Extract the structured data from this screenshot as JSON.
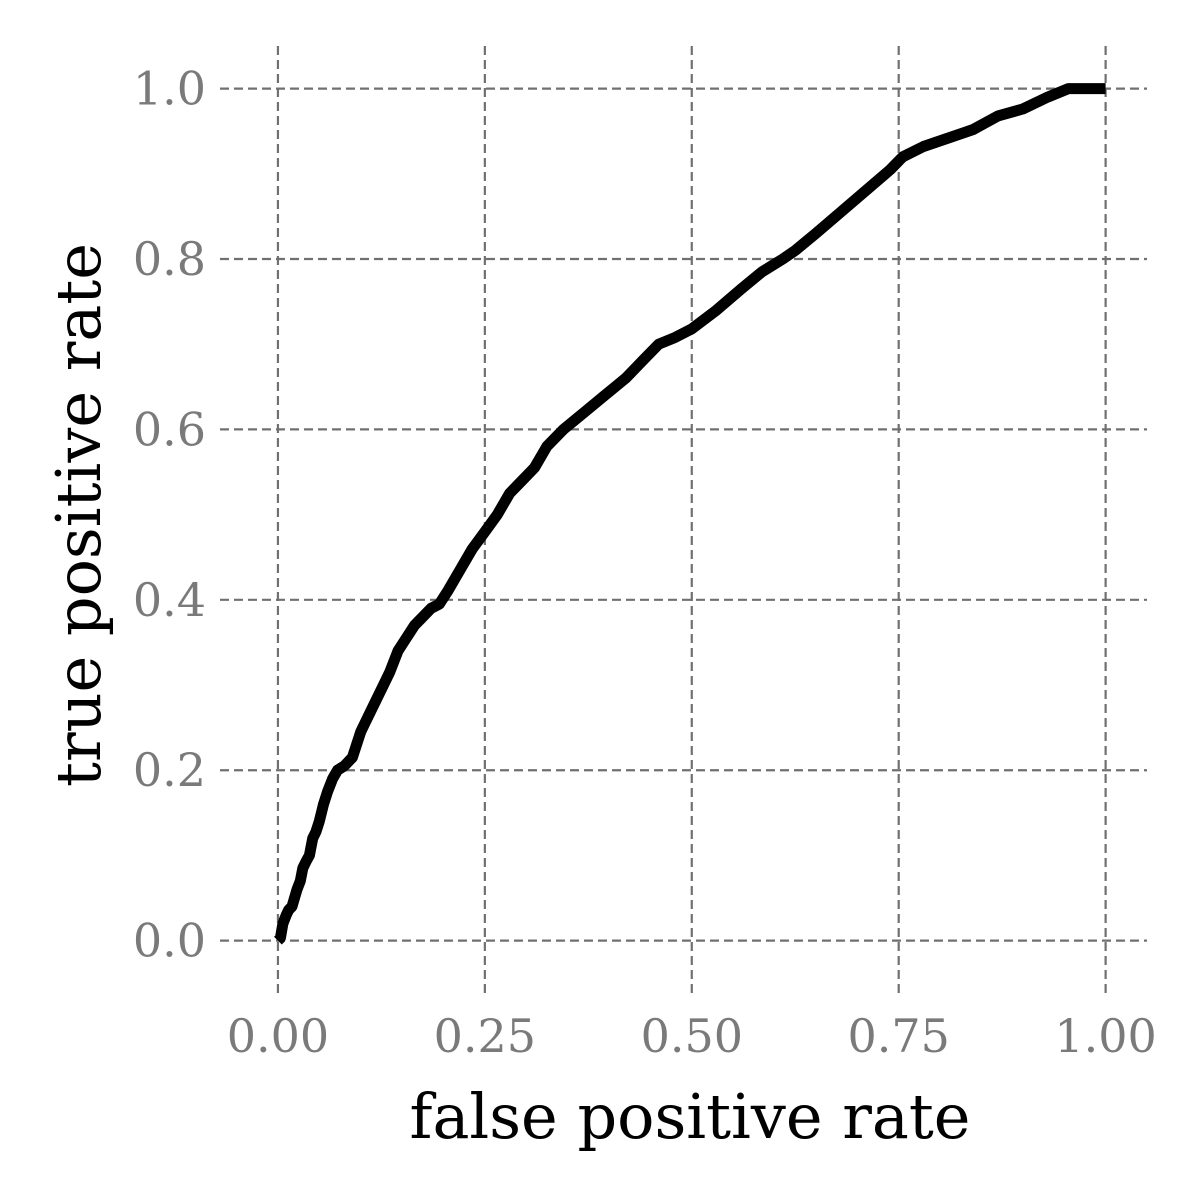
{
  "chart_data": {
    "type": "line",
    "title": "",
    "xlabel": "false positive rate",
    "ylabel": "true positive rate",
    "xlim": [
      -0.07,
      1.05
    ],
    "ylim": [
      -0.065,
      1.05
    ],
    "grid": true,
    "x_ticks": [
      0.0,
      0.25,
      0.5,
      0.75,
      1.0
    ],
    "x_tick_labels": [
      "0.00",
      "0.25",
      "0.50",
      "0.75",
      "1.00"
    ],
    "y_ticks": [
      0.0,
      0.2,
      0.4,
      0.6,
      0.8,
      1.0
    ],
    "y_tick_labels": [
      "0.0",
      "0.2",
      "0.4",
      "0.6",
      "0.8",
      "1.0"
    ],
    "line_color": "#000000",
    "grid_color": "#707070",
    "series": [
      {
        "x": [
          0.0,
          0.003,
          0.006,
          0.01,
          0.013,
          0.017,
          0.02,
          0.023,
          0.027,
          0.03,
          0.034,
          0.038,
          0.042,
          0.046,
          0.05,
          0.055,
          0.06,
          0.066,
          0.072,
          0.08,
          0.09,
          0.1,
          0.105,
          0.115,
          0.125,
          0.135,
          0.145,
          0.155,
          0.165,
          0.175,
          0.185,
          0.195,
          0.205,
          0.22,
          0.235,
          0.25,
          0.265,
          0.28,
          0.295,
          0.31,
          0.325,
          0.345,
          0.37,
          0.395,
          0.42,
          0.44,
          0.46,
          0.48,
          0.5,
          0.53,
          0.56,
          0.585,
          0.61,
          0.625,
          0.65,
          0.68,
          0.71,
          0.74,
          0.755,
          0.78,
          0.81,
          0.84,
          0.87,
          0.9,
          0.93,
          0.955,
          0.97,
          0.985,
          1.0
        ],
        "y": [
          0.0,
          0.003,
          0.02,
          0.03,
          0.036,
          0.04,
          0.05,
          0.06,
          0.07,
          0.085,
          0.093,
          0.1,
          0.12,
          0.128,
          0.14,
          0.16,
          0.175,
          0.19,
          0.2,
          0.205,
          0.215,
          0.245,
          0.255,
          0.275,
          0.295,
          0.315,
          0.34,
          0.355,
          0.37,
          0.38,
          0.39,
          0.395,
          0.41,
          0.435,
          0.46,
          0.48,
          0.5,
          0.525,
          0.54,
          0.555,
          0.58,
          0.6,
          0.62,
          0.64,
          0.66,
          0.68,
          0.7,
          0.708,
          0.718,
          0.74,
          0.765,
          0.785,
          0.8,
          0.81,
          0.83,
          0.855,
          0.88,
          0.905,
          0.92,
          0.932,
          0.942,
          0.952,
          0.968,
          0.976,
          0.99,
          1.0,
          1.0,
          1.0,
          1.0
        ]
      }
    ]
  }
}
